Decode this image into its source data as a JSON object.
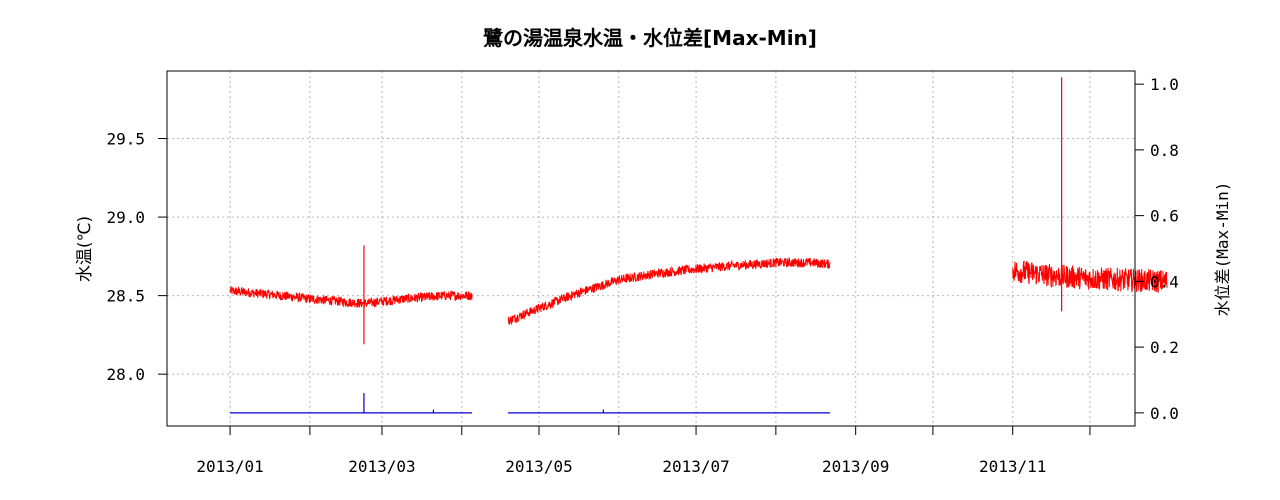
{
  "chart_data": {
    "type": "line",
    "title": "鷺の湯温泉水温・水位差[Max-Min]",
    "ylabel_left": "水温(℃)",
    "ylabel_right": "水位差(Max-Min)",
    "xlabel": "",
    "x_ticks": [
      "2013/01",
      "2013/03",
      "2013/05",
      "2013/07",
      "2013/09",
      "2013/11"
    ],
    "x_range_days": [
      -24.5,
      351.5
    ],
    "y_left_ticks": [
      "28.0",
      "28.5",
      "29.0",
      "29.5"
    ],
    "y_left_range": [
      27.67,
      29.93
    ],
    "y_right_ticks": [
      "0.0",
      "0.2",
      "0.4",
      "0.6",
      "0.8",
      "1.0"
    ],
    "y_right_range": [
      -0.04,
      1.04
    ],
    "grid": true,
    "colors": {
      "temperature": "#ff0000",
      "water_level_diff": "#0000cc",
      "grid": "#b8b8b8",
      "frame": "#000000"
    },
    "series": [
      {
        "axis": "left",
        "color": "#ff0000",
        "segments": [
          {
            "x": [
              "2013-01-01",
              "2013-01-15",
              "2013-02-01",
              "2013-02-15",
              "2013-02-22",
              "2013-03-10",
              "2013-03-25",
              "2013-04-05"
            ],
            "y": [
              28.53,
              28.51,
              28.48,
              28.46,
              28.45,
              28.48,
              28.5,
              28.5
            ],
            "spikes": [
              {
                "x": "2013-02-22",
                "max": 28.82,
                "min": 28.19
              }
            ]
          },
          {
            "x": [
              "2013-04-19",
              "2013-05-01",
              "2013-05-15",
              "2013-06-01",
              "2013-06-15",
              "2013-07-01",
              "2013-07-15",
              "2013-08-01",
              "2013-08-15",
              "2013-08-22"
            ],
            "y": [
              28.34,
              28.42,
              28.51,
              28.6,
              28.64,
              28.67,
              28.69,
              28.71,
              28.71,
              28.7
            ]
          },
          {
            "x": [
              "2013-11-01",
              "2013-11-15",
              "2013-12-01",
              "2013-12-15",
              "2013-12-31"
            ],
            "y": [
              28.66,
              28.63,
              28.61,
              28.6,
              28.59
            ],
            "spikes": [
              {
                "x": "2013-11-20",
                "max": 29.89,
                "min": 28.4
              }
            ]
          }
        ]
      },
      {
        "axis": "right",
        "color": "#0000cc",
        "segments": [
          {
            "x": [
              "2013-01-01",
              "2013-04-05"
            ],
            "y": [
              0.0,
              0.0
            ],
            "spikes": [
              {
                "x": "2013-02-22",
                "max": 0.06
              },
              {
                "x": "2013-03-21",
                "max": 0.01
              }
            ]
          },
          {
            "x": [
              "2013-04-19",
              "2013-08-22"
            ],
            "y": [
              0.0,
              0.0
            ],
            "spikes": [
              {
                "x": "2013-05-26",
                "max": 0.01
              }
            ]
          }
        ]
      }
    ]
  }
}
